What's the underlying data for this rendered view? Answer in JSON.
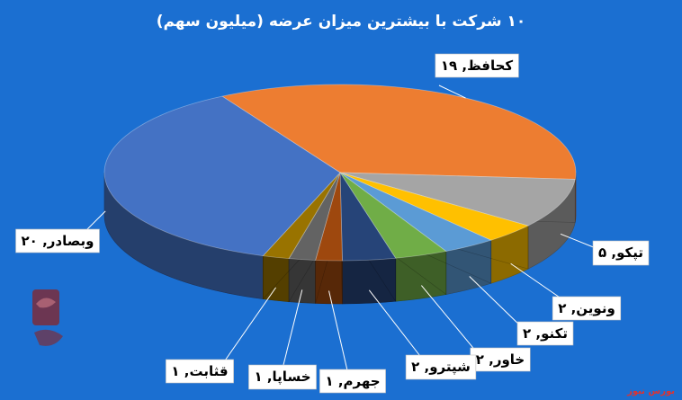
{
  "chart_data": {
    "type": "pie",
    "title": "۱۰ شرکت با بیشترین میزان عرضه (میلیون سهم)",
    "slices": [
      {
        "name": "کحافظ",
        "value": 19,
        "label": "کحافظ, ۱۹",
        "color": "#ED7D31"
      },
      {
        "name": "تپکو",
        "value": 5,
        "label": "تپکو, ۵",
        "color": "#A5A5A5"
      },
      {
        "name": "ونوین",
        "value": 2,
        "label": "ونوین, ۲",
        "color": "#FFC000"
      },
      {
        "name": "تکنو",
        "value": 2,
        "label": "تکنو, ۲",
        "color": "#5B9BD5"
      },
      {
        "name": "خاور",
        "value": 2,
        "label": "خاور, ۲",
        "color": "#70AD47"
      },
      {
        "name": "شپترو",
        "value": 2,
        "label": "شپترو, ۲",
        "color": "#264478"
      },
      {
        "name": "جهرم",
        "value": 1,
        "label": "جهرم, ۱",
        "color": "#9E480E"
      },
      {
        "name": "خساپا",
        "value": 1,
        "label": "خساپا, ۱",
        "color": "#636363"
      },
      {
        "name": "قثابت",
        "value": 1,
        "label": "قثابت, ۱",
        "color": "#997300"
      },
      {
        "name": "وبصادر",
        "value": 20,
        "label": "وبصادر, ۲۰",
        "color": "#4472C4"
      }
    ]
  },
  "source_text": "بورس نیوز"
}
